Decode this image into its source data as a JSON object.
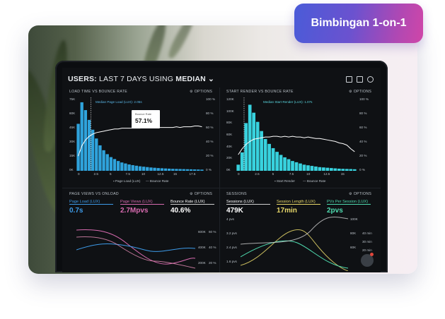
{
  "badge": {
    "label": "Bimbingan 1-on-1"
  },
  "dashboard": {
    "header": {
      "prefix": "USERS:",
      "range": "LAST 7 DAYS",
      "using": "USING",
      "stat": "MEDIAN"
    },
    "panels": {
      "load_time": {
        "title": "LOAD TIME VS BOUNCE RATE",
        "options": "OPTIONS",
        "annotation": "Median Page Load (LUX): 2.05s",
        "tooltip_label": "Bounce Rate",
        "tooltip_value": "57.1%",
        "y_left": [
          "75K",
          "60K",
          "45K",
          "30K",
          "15K",
          "0K"
        ],
        "y_right": [
          "100 %",
          "80 %",
          "60 %",
          "40 %",
          "20 %",
          "0 %"
        ],
        "x_ticks": [
          "0",
          "2.5",
          "5",
          "7.5",
          "10",
          "12.5",
          "15",
          "17.5"
        ],
        "legend": [
          "Page Load (LUX)",
          "Bounce Rate"
        ]
      },
      "start_render": {
        "title": "START RENDER VS BOUNCE RATE",
        "options": "OPTIONS",
        "annotation": "Median Start Render (LUX): 1.07s",
        "y_left": [
          "120K",
          "100K",
          "80K",
          "60K",
          "40K",
          "20K",
          "0K"
        ],
        "y_right": [
          "100 %",
          "80 %",
          "60 %",
          "40 %",
          "20 %",
          "0 %"
        ],
        "x_ticks": [
          "0",
          "2.5",
          "5",
          "7.5",
          "10",
          "12.5",
          "15"
        ],
        "legend": [
          "Start Render",
          "Bounce Rate"
        ]
      },
      "page_views": {
        "title": "PAGE VIEWS VS ONLOAD",
        "options": "OPTIONS",
        "metrics": [
          {
            "label": "Page Load (LUX)",
            "value": "0.7s",
            "color": "#3d9be9"
          },
          {
            "label": "Page Views (LUX)",
            "value": "2.7Mpvs",
            "color": "#d86bb0"
          },
          {
            "label": "Bounce Rate (LUX)",
            "value": "40.6%",
            "color": "#ffffff"
          }
        ],
        "y_right": [
          "600K",
          "400K",
          "200K"
        ],
        "y_far": [
          "60 %",
          "40 %",
          "20 %"
        ]
      },
      "sessions": {
        "title": "SESSIONS",
        "options": "OPTIONS",
        "metrics": [
          {
            "label": "Sessions (LUX)",
            "value": "479K",
            "color": "#ffffff"
          },
          {
            "label": "Session Length (LUX)",
            "value": "17min",
            "color": "#e8d86a"
          },
          {
            "label": "PVs Per Session (LUX)",
            "value": "2pvs",
            "color": "#4fdcb0"
          }
        ],
        "y_left": [
          "4 pvs",
          "3.2 pvs",
          "2.4 pvs",
          "1.6 pvs"
        ],
        "y_right": [
          "100K",
          "80K",
          "60K"
        ],
        "y_far": [
          "40 min",
          "30 min",
          "20 min"
        ]
      }
    }
  },
  "chart_data": [
    {
      "type": "bar",
      "title": "LOAD TIME VS BOUNCE RATE",
      "categories": [
        "0.5",
        "1",
        "1.5",
        "2",
        "2.5",
        "3",
        "3.5",
        "4",
        "4.5",
        "5",
        "5.5",
        "6",
        "6.5",
        "7",
        "7.5",
        "8",
        "8.5",
        "9",
        "9.5",
        "10",
        "10.5",
        "11",
        "11.5",
        "12",
        "12.5",
        "13",
        "13.5",
        "14",
        "14.5",
        "15",
        "15.5",
        "16",
        "16.5",
        "17",
        "17.5"
      ],
      "series": [
        {
          "name": "Page Load (LUX)",
          "values": [
            48000,
            70000,
            62000,
            52000,
            42000,
            33000,
            26000,
            21000,
            17000,
            14000,
            12000,
            10000,
            8500,
            7500,
            6500,
            5800,
            5200,
            4600,
            4200,
            3800,
            3400,
            3100,
            2800,
            2600,
            2400,
            2200,
            2000,
            1900,
            1800,
            1700,
            1600,
            1500,
            1400,
            1300,
            1200
          ]
        },
        {
          "name": "Bounce Rate",
          "values": [
            20,
            34,
            42,
            47,
            50,
            52,
            53,
            54,
            55,
            56,
            57,
            57,
            58,
            58,
            58,
            58,
            58,
            58,
            59,
            59,
            59,
            59,
            59,
            59,
            59,
            59,
            59,
            60,
            59,
            60,
            60,
            60,
            61,
            61,
            60
          ]
        }
      ],
      "ylim": [
        0,
        75000
      ]
    },
    {
      "type": "bar",
      "title": "START RENDER VS BOUNCE RATE",
      "categories": [
        "0.5",
        "1",
        "1.5",
        "2",
        "2.5",
        "3",
        "3.5",
        "4",
        "4.5",
        "5",
        "5.5",
        "6",
        "6.5",
        "7",
        "7.5",
        "8",
        "8.5",
        "9",
        "9.5",
        "10",
        "10.5",
        "11",
        "11.5",
        "12",
        "12.5",
        "13",
        "13.5",
        "14",
        "14.5",
        "15",
        "15.5"
      ],
      "series": [
        {
          "name": "Start Render",
          "values": [
            10000,
            30000,
            78000,
            108000,
            95000,
            80000,
            65000,
            52000,
            44000,
            37000,
            31000,
            26000,
            22000,
            19000,
            16000,
            14000,
            12000,
            10000,
            9000,
            8000,
            7000,
            6000,
            5500,
            5000,
            4500,
            4000,
            3500,
            3200,
            3000,
            2800,
            2500
          ]
        },
        {
          "name": "Bounce Rate",
          "values": [
            22,
            30,
            36,
            40,
            43,
            44,
            45,
            46,
            46,
            47,
            47,
            46,
            47,
            46,
            47,
            46,
            46,
            45,
            46,
            45,
            44,
            44,
            43,
            42,
            41,
            40,
            38,
            37,
            35,
            30,
            26
          ]
        }
      ],
      "ylim": [
        0,
        120000
      ]
    }
  ]
}
